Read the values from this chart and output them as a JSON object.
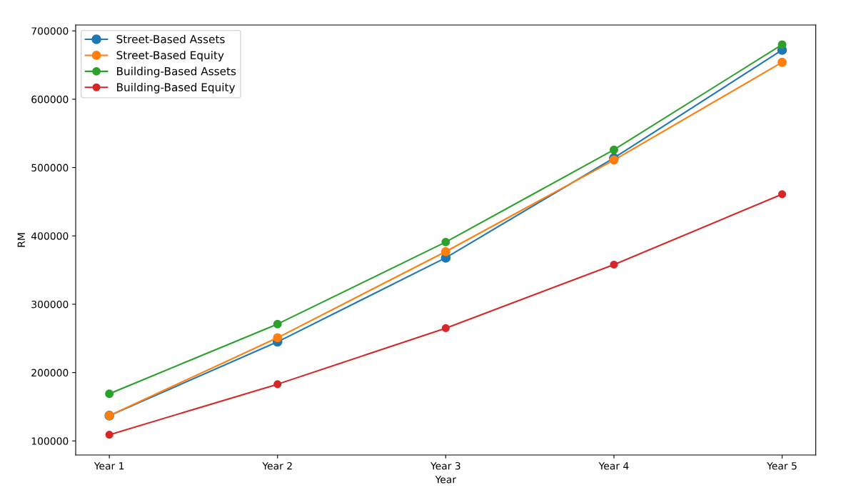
{
  "chart_data": {
    "type": "line",
    "xlabel": "Year",
    "ylabel": "RM",
    "categories": [
      "Year 1",
      "Year 2",
      "Year 3",
      "Year 4",
      "Year 5"
    ],
    "series": [
      {
        "name": "Street-Based Assets",
        "color": "#1f77b4",
        "values": [
          137000,
          245000,
          368000,
          514000,
          672000
        ]
      },
      {
        "name": "Street-Based Equity",
        "color": "#ff7f0e",
        "values": [
          137000,
          251000,
          377000,
          511000,
          654000
        ]
      },
      {
        "name": "Building-Based Assets",
        "color": "#2ca02c",
        "values": [
          169000,
          271000,
          391000,
          526000,
          680000
        ]
      },
      {
        "name": "Building-Based Equity",
        "color": "#d62728",
        "values": [
          109000,
          183000,
          265000,
          358000,
          461000
        ]
      }
    ],
    "ylim": [
      79400,
      708600
    ],
    "yticks": [
      100000,
      200000,
      300000,
      400000,
      500000,
      600000,
      700000
    ],
    "marker": "circle",
    "line_style": "solid",
    "legend": "top left",
    "grid": false
  }
}
